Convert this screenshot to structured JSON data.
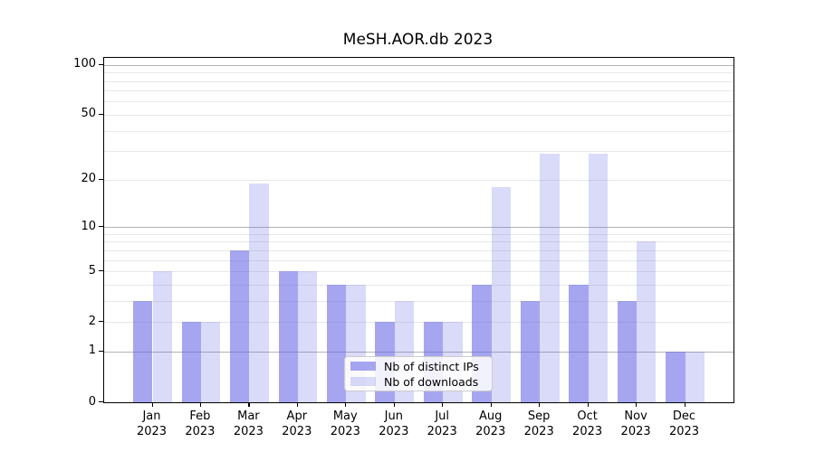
{
  "chart_data": {
    "type": "bar",
    "title": "MeSH.AOR.db 2023",
    "categories": [
      "Jan",
      "Feb",
      "Mar",
      "Apr",
      "May",
      "Jun",
      "Jul",
      "Aug",
      "Sep",
      "Oct",
      "Nov",
      "Dec"
    ],
    "category_year": "2023",
    "series": [
      {
        "name": "Nb of distinct IPs",
        "color": "rgba(102,102,230,0.58)",
        "values": [
          3,
          2,
          7,
          5,
          4,
          2,
          2,
          4,
          3,
          4,
          3,
          1
        ]
      },
      {
        "name": "Nb of downloads",
        "color": "rgba(102,102,230,0.24)",
        "values": [
          5,
          2,
          19,
          5,
          4,
          3,
          2,
          18,
          29,
          29,
          8,
          1
        ]
      }
    ],
    "yscale": "log1p",
    "ylim": [
      0,
      110
    ],
    "yticks": [
      0,
      1,
      2,
      5,
      10,
      20,
      50,
      100
    ],
    "gridlines": {
      "major": [
        1,
        10,
        100
      ],
      "minor": [
        2,
        3,
        4,
        5,
        6,
        7,
        8,
        9,
        20,
        30,
        40,
        50,
        60,
        70,
        80,
        90
      ]
    },
    "colors": {
      "major_grid": "#b3b3b3",
      "minor_grid": "#e8e8e8",
      "axis": "#000000",
      "legend_border": "#cccccc"
    },
    "legend": {
      "position": "lower center"
    },
    "grid": true
  }
}
